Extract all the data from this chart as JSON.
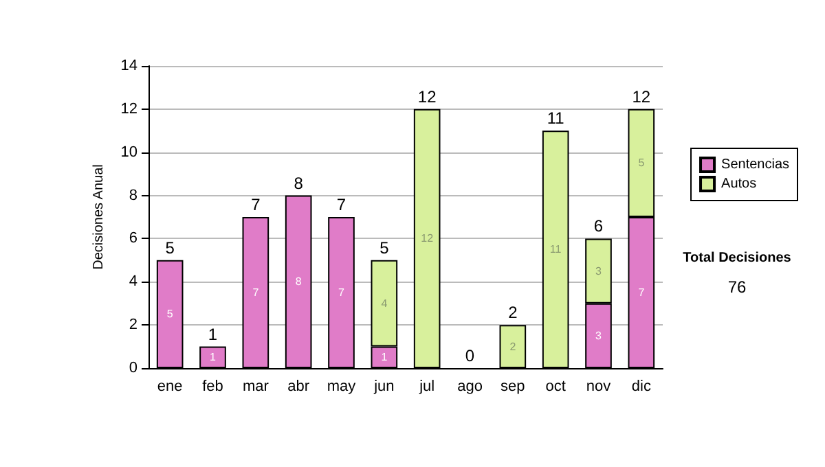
{
  "chart_data": {
    "type": "bar",
    "stacked": true,
    "ylabel": "Decisiones Anual",
    "categories": [
      "ene",
      "feb",
      "mar",
      "abr",
      "may",
      "jun",
      "jul",
      "ago",
      "sep",
      "oct",
      "nov",
      "dic"
    ],
    "series": [
      {
        "name": "Sentencias",
        "color": "#e07cc8",
        "values": [
          5,
          1,
          7,
          8,
          7,
          1,
          0,
          0,
          0,
          0,
          3,
          7
        ],
        "value_labels": [
          "5",
          "1",
          "7",
          "8",
          "7",
          "1",
          null,
          null,
          null,
          null,
          "3",
          "7"
        ]
      },
      {
        "name": "Autos",
        "color": "#d8f09c",
        "values": [
          0,
          0,
          0,
          0,
          0,
          4,
          12,
          0,
          2,
          11,
          3,
          5
        ],
        "value_labels": [
          null,
          null,
          null,
          null,
          null,
          "4",
          "12",
          null,
          "2",
          "11",
          "3",
          "5"
        ]
      }
    ],
    "totals": [
      "5",
      "1",
      "7",
      "8",
      "7",
      "5",
      "12",
      "0",
      "2",
      "11",
      "6",
      "12"
    ],
    "ylim": [
      0,
      14
    ],
    "yticks": [
      0,
      2,
      4,
      6,
      8,
      10,
      12,
      14
    ],
    "grid": "y",
    "legend": "right",
    "annotations": [
      "Total Decisiones",
      "76"
    ]
  }
}
